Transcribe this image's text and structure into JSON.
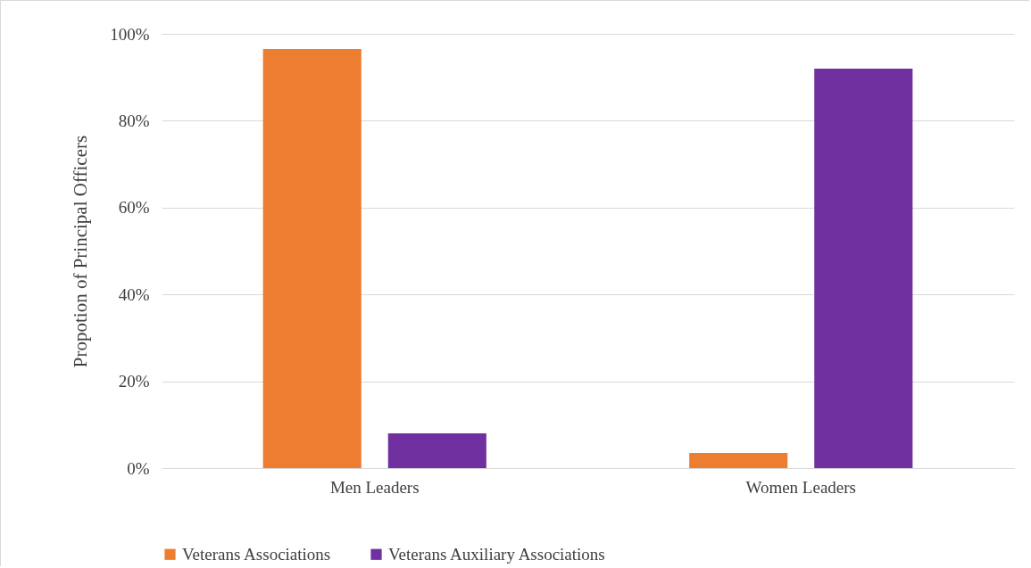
{
  "chart_data": {
    "type": "bar",
    "ylabel": "Propotion of Principal Officers",
    "categories": [
      "Men Leaders",
      "Women Leaders"
    ],
    "series": [
      {
        "name": "Veterans Associations",
        "color": "#ed7d31",
        "values": [
          96.5,
          3.5
        ]
      },
      {
        "name": "Veterans Auxiliary Associations",
        "color": "#7030a0",
        "values": [
          8.0,
          92.0
        ]
      }
    ],
    "ylim": [
      0,
      100
    ],
    "yticks": [
      {
        "value": 0,
        "label": "0%"
      },
      {
        "value": 20,
        "label": "20%"
      },
      {
        "value": 40,
        "label": "40%"
      },
      {
        "value": 60,
        "label": "60%"
      },
      {
        "value": 80,
        "label": "80%"
      },
      {
        "value": 100,
        "label": "100%"
      }
    ],
    "grid": "y",
    "legend": "bottom"
  }
}
